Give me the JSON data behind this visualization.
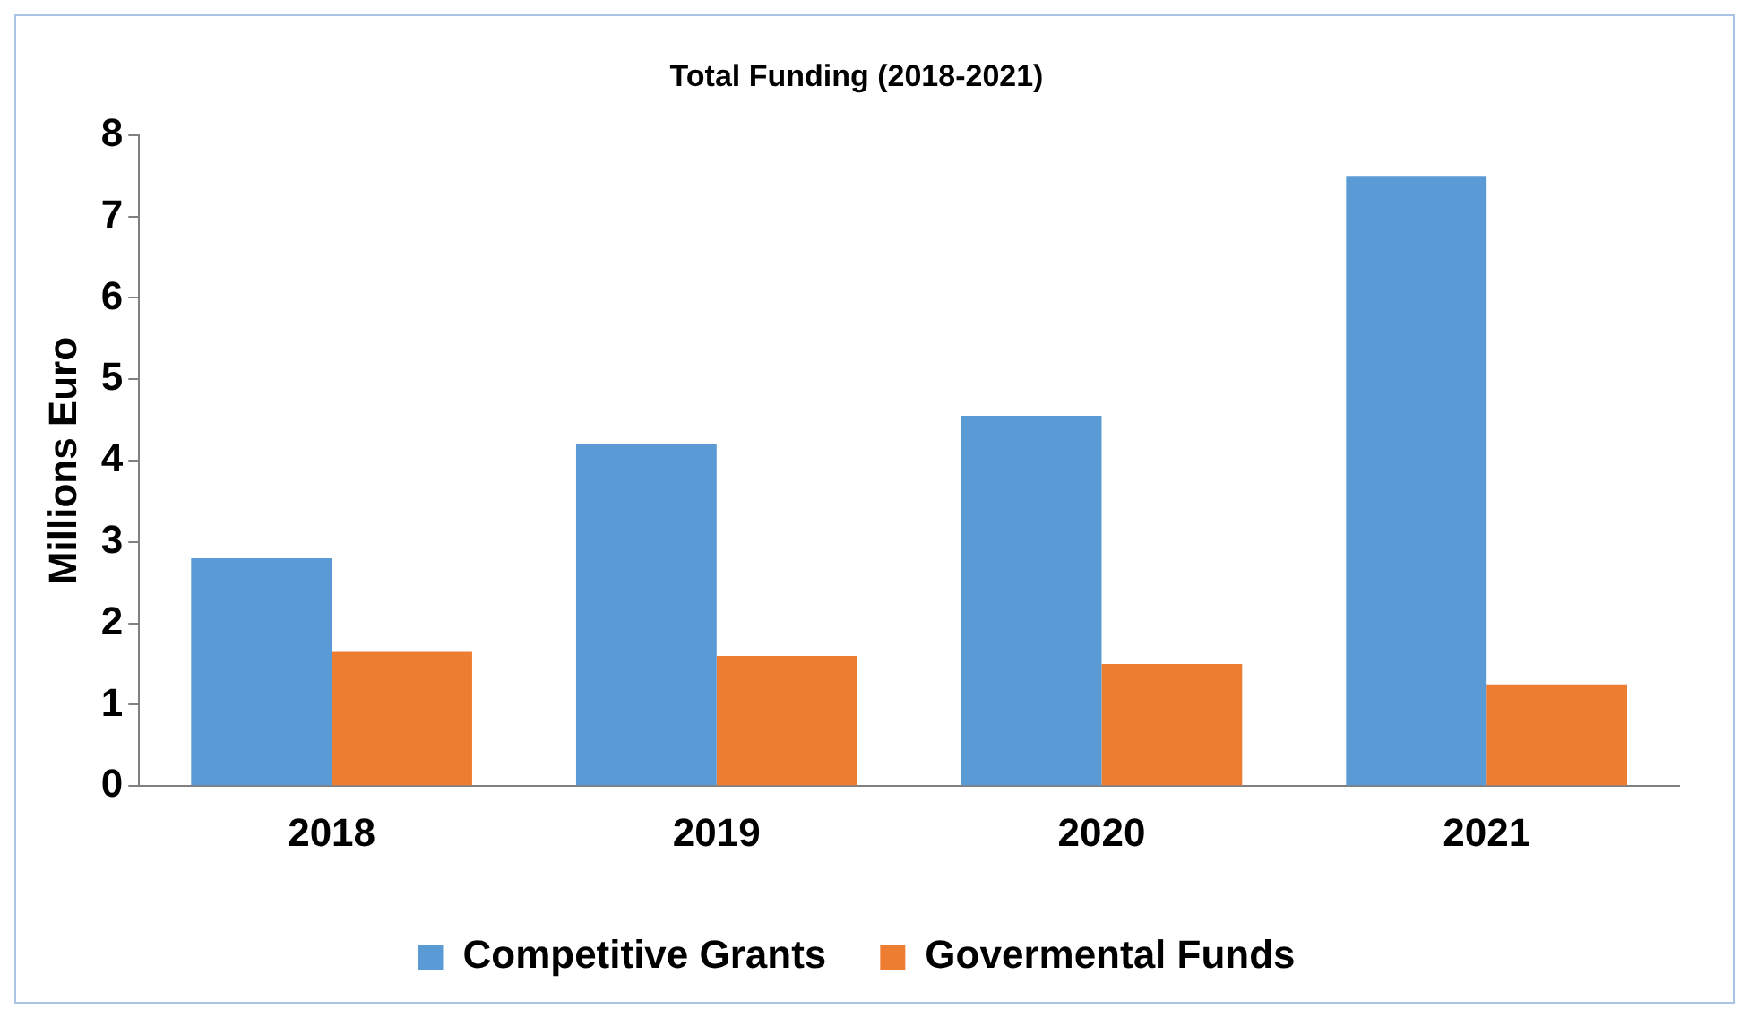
{
  "chart_data": {
    "type": "bar",
    "title": "Total Funding (2018-2021)",
    "ylabel": "Millions Euro",
    "categories": [
      "2018",
      "2019",
      "2020",
      "2021"
    ],
    "series": [
      {
        "name": "Competitive Grants",
        "color": "#5b9bd5",
        "values": [
          2.8,
          4.2,
          4.55,
          7.5
        ]
      },
      {
        "name": "Govermental Funds",
        "color": "#ed7d31",
        "values": [
          1.65,
          1.6,
          1.5,
          1.25
        ]
      }
    ],
    "ylim": [
      0,
      8
    ],
    "yticks": [
      0,
      1,
      2,
      3,
      4,
      5,
      6,
      7,
      8
    ],
    "grid": false,
    "legend": "bottom"
  }
}
